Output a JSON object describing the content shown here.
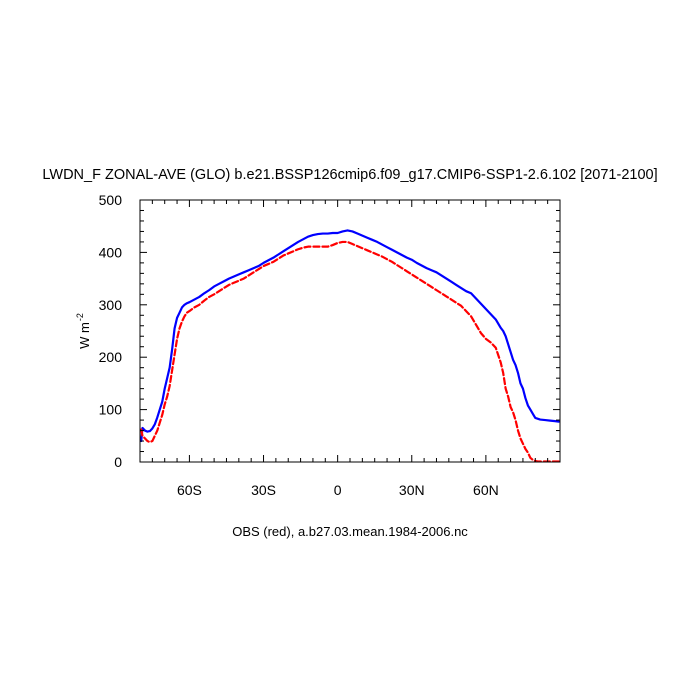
{
  "chart_data": {
    "type": "line",
    "title": "LWDN_F ZONAL-AVE (GLO) b.e21.BSSP126cmip6.f09_g17.CMIP6-SSP1-2.6.102 [2071-2100]",
    "ylabel": "W m",
    "ylabel_exponent": "-2",
    "caption": "OBS (red), a.b27.03.mean.1984-2006.nc",
    "xlim": [
      -80,
      90
    ],
    "ylim": [
      0,
      500
    ],
    "x_ticks": [
      {
        "value": -60,
        "label": "60S"
      },
      {
        "value": -30,
        "label": "30S"
      },
      {
        "value": 0,
        "label": "0"
      },
      {
        "value": 30,
        "label": "30N"
      },
      {
        "value": 60,
        "label": "60N"
      }
    ],
    "y_ticks": [
      {
        "value": 0,
        "label": "0"
      },
      {
        "value": 100,
        "label": "100"
      },
      {
        "value": 200,
        "label": "200"
      },
      {
        "value": 300,
        "label": "300"
      },
      {
        "value": 400,
        "label": "400"
      },
      {
        "value": 500,
        "label": "500"
      }
    ],
    "grid": false,
    "series": [
      {
        "color": "#0000ff",
        "dash": "solid",
        "x": [
          -79.5,
          -79,
          -78,
          -77,
          -76,
          -75,
          -74,
          -73,
          -72,
          -71,
          -70,
          -69,
          -68,
          -67,
          -66,
          -65,
          -64,
          -63,
          -62,
          -61,
          -60,
          -58,
          -56,
          -54,
          -52,
          -50,
          -48,
          -46,
          -44,
          -42,
          -40,
          -38,
          -36,
          -34,
          -32,
          -30,
          -28,
          -26,
          -24,
          -22,
          -20,
          -18,
          -16,
          -14,
          -12,
          -10,
          -8,
          -6,
          -4,
          -2,
          0,
          2,
          4,
          6,
          8,
          10,
          12,
          14,
          16,
          18,
          20,
          22,
          24,
          26,
          28,
          30,
          32,
          34,
          36,
          38,
          40,
          42,
          44,
          46,
          48,
          50,
          52,
          54,
          56,
          58,
          60,
          62,
          64,
          66,
          67,
          68,
          69,
          70,
          71,
          72,
          73,
          74,
          75,
          76,
          77,
          78,
          79,
          80,
          82,
          84,
          86,
          88,
          89.5
        ],
        "values": [
          40,
          65,
          60,
          58,
          59,
          64,
          72,
          85,
          100,
          115,
          140,
          160,
          180,
          215,
          255,
          275,
          285,
          295,
          300,
          303,
          305,
          310,
          315,
          322,
          328,
          335,
          340,
          345,
          350,
          354,
          358,
          362,
          366,
          370,
          374,
          380,
          385,
          390,
          396,
          402,
          408,
          414,
          420,
          425,
          430,
          433,
          435,
          436,
          436,
          437,
          437,
          440,
          442,
          440,
          436,
          432,
          428,
          424,
          420,
          415,
          410,
          405,
          400,
          395,
          390,
          386,
          380,
          375,
          370,
          366,
          362,
          356,
          350,
          344,
          338,
          332,
          326,
          322,
          312,
          302,
          292,
          282,
          272,
          256,
          250,
          240,
          225,
          210,
          195,
          185,
          170,
          150,
          140,
          122,
          108,
          100,
          92,
          84,
          81,
          80,
          79,
          78,
          77
        ]
      },
      {
        "color": "#ff0000",
        "dash": "dashed",
        "x": [
          -79.5,
          -79,
          -78,
          -77,
          -76,
          -75,
          -74,
          -73,
          -72,
          -71,
          -70,
          -69,
          -68,
          -67,
          -66,
          -65,
          -64,
          -63,
          -62,
          -61,
          -60,
          -58,
          -56,
          -54,
          -52,
          -50,
          -48,
          -46,
          -44,
          -42,
          -40,
          -38,
          -36,
          -34,
          -32,
          -30,
          -28,
          -26,
          -24,
          -22,
          -20,
          -18,
          -16,
          -14,
          -12,
          -10,
          -8,
          -6,
          -4,
          -2,
          0,
          2,
          4,
          6,
          8,
          10,
          12,
          14,
          16,
          18,
          20,
          22,
          24,
          26,
          28,
          30,
          32,
          34,
          36,
          38,
          40,
          42,
          44,
          46,
          48,
          50,
          52,
          54,
          56,
          58,
          60,
          62,
          64,
          66,
          67,
          68,
          69,
          70,
          71,
          72,
          73,
          74,
          75,
          76,
          77,
          78,
          79,
          80,
          81,
          82,
          84,
          86,
          88,
          89.5
        ],
        "values": [
          62,
          50,
          45,
          40,
          38,
          40,
          50,
          60,
          75,
          90,
          110,
          125,
          145,
          175,
          205,
          235,
          255,
          268,
          278,
          285,
          288,
          295,
          300,
          308,
          315,
          320,
          326,
          332,
          338,
          342,
          346,
          350,
          356,
          362,
          368,
          374,
          378,
          382,
          388,
          394,
          398,
          402,
          406,
          409,
          411,
          411,
          411,
          411,
          411,
          414,
          418,
          420,
          420,
          416,
          412,
          408,
          404,
          400,
          396,
          392,
          387,
          382,
          376,
          370,
          364,
          358,
          352,
          346,
          340,
          334,
          328,
          322,
          316,
          310,
          304,
          298,
          288,
          278,
          262,
          246,
          235,
          228,
          218,
          190,
          170,
          140,
          125,
          105,
          95,
          80,
          60,
          45,
          35,
          25,
          18,
          8,
          4,
          2,
          1,
          1,
          1,
          1,
          1,
          1
        ]
      }
    ]
  }
}
